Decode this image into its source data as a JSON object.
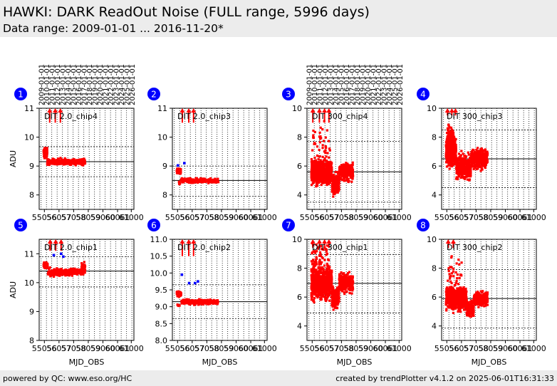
{
  "header": {
    "title": "HAWKI: DARK ReadOut Noise (FULL range, 5996 days)",
    "subtitle": "Data range: 2009-01-01 ... 2016-11-20*"
  },
  "footer": {
    "left": "powered by QC: www.eso.org/HC",
    "right": "created by trendPlotter v4.1.2 on 2025-06-01T16:31:33"
  },
  "colors": {
    "data": "#ff0000",
    "outlier": "#0000ff",
    "badge": "#0000ff"
  },
  "chart_data": {
    "type": "scatter",
    "xlabel": "MJD_OBS",
    "ylabel": "ADU",
    "x_ticks": [
      55056,
      56057,
      57058,
      58059,
      59060,
      60061,
      61000
    ],
    "x_tick_labels": [
      "55056",
      "56057",
      "57058",
      "58059",
      "59060",
      "60061",
      "61000"
    ],
    "xlim": [
      54700,
      61180
    ],
    "date_ticks": [
      "2009-01-01",
      "2010-01-01",
      "2011-01-01",
      "2012-01-01",
      "2013-01-01",
      "2014-01-01",
      "2015-01-01",
      "2016-01-01",
      "2017-01-01",
      "2018-01-01",
      "2019-01-01",
      "2020-01-01",
      "2021-01-01",
      "2022-01-01",
      "2023-01-01",
      "2024-01-01",
      "2025-01-01",
      "2026-01-01"
    ],
    "date_tick_mjd": [
      54832,
      55197,
      55562,
      55927,
      56293,
      56658,
      57023,
      57388,
      57754,
      58119,
      58484,
      58849,
      59215,
      59580,
      59945,
      60310,
      60676,
      61041
    ],
    "panels": [
      {
        "index": "1",
        "label": "DIT 2.0_chip4",
        "ylim": [
          7.5,
          11
        ],
        "yticks": [
          8,
          9,
          10,
          11
        ],
        "ytick_labels": [
          "8",
          "9",
          "10",
          "11"
        ],
        "avg": 9.15,
        "upper": 9.67,
        "lower": 8.63,
        "date_axis": true,
        "series": [
          {
            "x_range": [
              55000,
              55250
            ],
            "level": 9.45,
            "spread": 0.11,
            "n": 90
          },
          {
            "x_range": [
              55250,
              57850
            ],
            "level": 9.15,
            "spread": 0.07,
            "n": 320
          }
        ],
        "spikes": [
          {
            "x": 55420,
            "y_low": 10.5,
            "y_high": 11
          },
          {
            "x": 55800,
            "y_low": 10.5,
            "y_high": 11
          },
          {
            "x": 56150,
            "y_low": 10.5,
            "y_high": 11
          }
        ],
        "outliers": []
      },
      {
        "index": "2",
        "label": "DIT 2.0_chip3",
        "ylim": [
          7.5,
          11
        ],
        "yticks": [
          8,
          9,
          10,
          11
        ],
        "ytick_labels": [
          "8",
          "9",
          "10",
          "11"
        ],
        "avg": 8.5,
        "upper": 9.0,
        "lower": 7.95,
        "date_axis": false,
        "series": [
          {
            "x_range": [
              55000,
              55280
            ],
            "level": 8.82,
            "spread": 0.06,
            "n": 70
          },
          {
            "x_range": [
              55280,
              57850
            ],
            "level": 8.49,
            "spread": 0.05,
            "n": 280
          },
          {
            "x_range": [
              55150,
              55300
            ],
            "level": 8.42,
            "spread": 0.04,
            "n": 10
          }
        ],
        "spikes": [
          {
            "x": 55380,
            "y_low": 10.5,
            "y_high": 11
          },
          {
            "x": 55820,
            "y_low": 10.5,
            "y_high": 11
          },
          {
            "x": 56150,
            "y_low": 10.5,
            "y_high": 11
          }
        ],
        "outliers": [
          {
            "x": 55080,
            "y": 9.02
          },
          {
            "x": 55520,
            "y": 9.1
          }
        ]
      },
      {
        "index": "3",
        "label": "DIT 300_chip4",
        "ylim": [
          3,
          10
        ],
        "yticks": [
          4,
          6,
          8,
          10
        ],
        "ytick_labels": [
          "4",
          "6",
          "8",
          "10"
        ],
        "avg": 5.6,
        "upper": 7.7,
        "lower": 3.5,
        "date_axis": true,
        "series": [
          {
            "x_range": [
              55000,
              56400
            ],
            "level": 5.6,
            "spread": 0.55,
            "n": 700
          },
          {
            "x_range": [
              56400,
              56900
            ],
            "level": 4.7,
            "spread": 0.45,
            "n": 180
          },
          {
            "x_range": [
              56900,
              57850
            ],
            "level": 5.6,
            "spread": 0.4,
            "n": 260
          },
          {
            "x_range": [
              55000,
              56300
            ],
            "level": 7.7,
            "spread": 1.0,
            "n": 40
          }
        ],
        "spikes": [
          {
            "x": 55100,
            "y_low": 9.0,
            "y_high": 10
          },
          {
            "x": 55550,
            "y_low": 9.0,
            "y_high": 10
          },
          {
            "x": 55900,
            "y_low": 9.0,
            "y_high": 10
          },
          {
            "x": 56200,
            "y_low": 9.0,
            "y_high": 10
          }
        ],
        "outliers": []
      },
      {
        "index": "4",
        "label": "DIT 300_chip3",
        "ylim": [
          3,
          10
        ],
        "yticks": [
          4,
          6,
          8,
          10
        ],
        "ytick_labels": [
          "4",
          "6",
          "8",
          "10"
        ],
        "avg": 6.5,
        "upper": 8.5,
        "lower": 4.5,
        "date_axis": false,
        "series": [
          {
            "x_range": [
              55000,
              55700
            ],
            "level": 7.0,
            "spread": 0.65,
            "n": 450
          },
          {
            "x_range": [
              55700,
              56700
            ],
            "level": 5.9,
            "spread": 0.55,
            "n": 350
          },
          {
            "x_range": [
              56700,
              57850
            ],
            "level": 6.5,
            "spread": 0.45,
            "n": 300
          },
          {
            "x_range": [
              55050,
              55500
            ],
            "level": 8.0,
            "spread": 0.5,
            "n": 120
          }
        ],
        "spikes": [
          {
            "x": 55100,
            "y_low": 9.5,
            "y_high": 10
          },
          {
            "x": 55400,
            "y_low": 9.5,
            "y_high": 10
          },
          {
            "x": 55650,
            "y_low": 9.5,
            "y_high": 10
          }
        ],
        "outliers": []
      },
      {
        "index": "5",
        "label": "DIT 2.0_chip1",
        "ylim": [
          8,
          11.5
        ],
        "yticks": [
          8,
          9,
          10,
          11
        ],
        "ytick_labels": [
          "8",
          "9",
          "10",
          "11"
        ],
        "avg": 10.4,
        "upper": 10.9,
        "lower": 9.85,
        "date_axis": false,
        "series": [
          {
            "x_range": [
              55000,
              55300
            ],
            "level": 10.6,
            "spread": 0.07,
            "n": 80
          },
          {
            "x_range": [
              55300,
              57850
            ],
            "level": 10.36,
            "spread": 0.08,
            "n": 330
          },
          {
            "x_range": [
              57600,
              57850
            ],
            "level": 10.5,
            "spread": 0.1,
            "n": 60
          }
        ],
        "spikes": [
          {
            "x": 55450,
            "y_low": 11.1,
            "y_high": 11.5
          },
          {
            "x": 55830,
            "y_low": 11.1,
            "y_high": 11.5
          },
          {
            "x": 56200,
            "y_low": 11.1,
            "y_high": 11.5
          }
        ],
        "outliers": [
          {
            "x": 55700,
            "y": 10.95
          },
          {
            "x": 56200,
            "y": 11.0
          },
          {
            "x": 56350,
            "y": 10.9
          }
        ]
      },
      {
        "index": "6",
        "label": "DIT 2.0_chip2",
        "ylim": [
          8.0,
          11.0
        ],
        "yticks": [
          8.0,
          8.5,
          9.0,
          9.5,
          10.0,
          10.5,
          11.0
        ],
        "ytick_labels": [
          "8.0",
          "8.5",
          "9.0",
          "9.5",
          "10.0",
          "10.5",
          "11.0"
        ],
        "avg": 9.15,
        "upper": 9.65,
        "lower": 8.65,
        "date_axis": false,
        "series": [
          {
            "x_range": [
              55000,
              55300
            ],
            "level": 9.38,
            "spread": 0.05,
            "n": 70
          },
          {
            "x_range": [
              55300,
              57850
            ],
            "level": 9.14,
            "spread": 0.05,
            "n": 300
          },
          {
            "x_range": [
              55050,
              55200
            ],
            "level": 9.05,
            "spread": 0.03,
            "n": 12
          }
        ],
        "spikes": [
          {
            "x": 55380,
            "y_low": 10.5,
            "y_high": 11.0
          },
          {
            "x": 55820,
            "y_low": 10.5,
            "y_high": 11.0
          },
          {
            "x": 56150,
            "y_low": 10.5,
            "y_high": 11.0
          }
        ],
        "outliers": [
          {
            "x": 55350,
            "y": 9.95
          },
          {
            "x": 55850,
            "y": 9.7
          },
          {
            "x": 56250,
            "y": 9.7
          },
          {
            "x": 56450,
            "y": 9.75
          }
        ]
      },
      {
        "index": "7",
        "label": "DIT 300_chip1",
        "ylim": [
          3,
          10
        ],
        "yticks": [
          4,
          6,
          8,
          10
        ],
        "ytick_labels": [
          "4",
          "6",
          "8",
          "10"
        ],
        "avg": 6.95,
        "upper": 8.95,
        "lower": 4.9,
        "date_axis": false,
        "series": [
          {
            "x_range": [
              55000,
              56400
            ],
            "level": 7.0,
            "spread": 0.75,
            "n": 750
          },
          {
            "x_range": [
              56400,
              56900
            ],
            "level": 6.0,
            "spread": 0.5,
            "n": 180
          },
          {
            "x_range": [
              56900,
              57850
            ],
            "level": 7.0,
            "spread": 0.45,
            "n": 260
          },
          {
            "x_range": [
              55000,
              56200
            ],
            "level": 8.8,
            "spread": 0.7,
            "n": 60
          }
        ],
        "spikes": [
          {
            "x": 55100,
            "y_low": 9.4,
            "y_high": 10
          },
          {
            "x": 55550,
            "y_low": 9.4,
            "y_high": 10
          },
          {
            "x": 55900,
            "y_low": 9.4,
            "y_high": 10
          },
          {
            "x": 56200,
            "y_low": 9.4,
            "y_high": 10
          }
        ],
        "outliers": []
      },
      {
        "index": "8",
        "label": "DIT 300_chip2",
        "ylim": [
          3,
          10
        ],
        "yticks": [
          4,
          6,
          8,
          10
        ],
        "ytick_labels": [
          "4",
          "6",
          "8",
          "10"
        ],
        "avg": 5.9,
        "upper": 7.9,
        "lower": 3.85,
        "date_axis": false,
        "series": [
          {
            "x_range": [
              55000,
              56400
            ],
            "level": 5.9,
            "spread": 0.5,
            "n": 600
          },
          {
            "x_range": [
              56400,
              56900
            ],
            "level": 5.2,
            "spread": 0.4,
            "n": 170
          },
          {
            "x_range": [
              56900,
              57850
            ],
            "level": 5.9,
            "spread": 0.35,
            "n": 240
          },
          {
            "x_range": [
              55100,
              56100
            ],
            "level": 7.5,
            "spread": 0.9,
            "n": 40
          }
        ],
        "spikes": [
          {
            "x": 55150,
            "y_low": 9.4,
            "y_high": 10
          },
          {
            "x": 55500,
            "y_low": 9.4,
            "y_high": 10
          }
        ],
        "outliers": []
      }
    ]
  }
}
